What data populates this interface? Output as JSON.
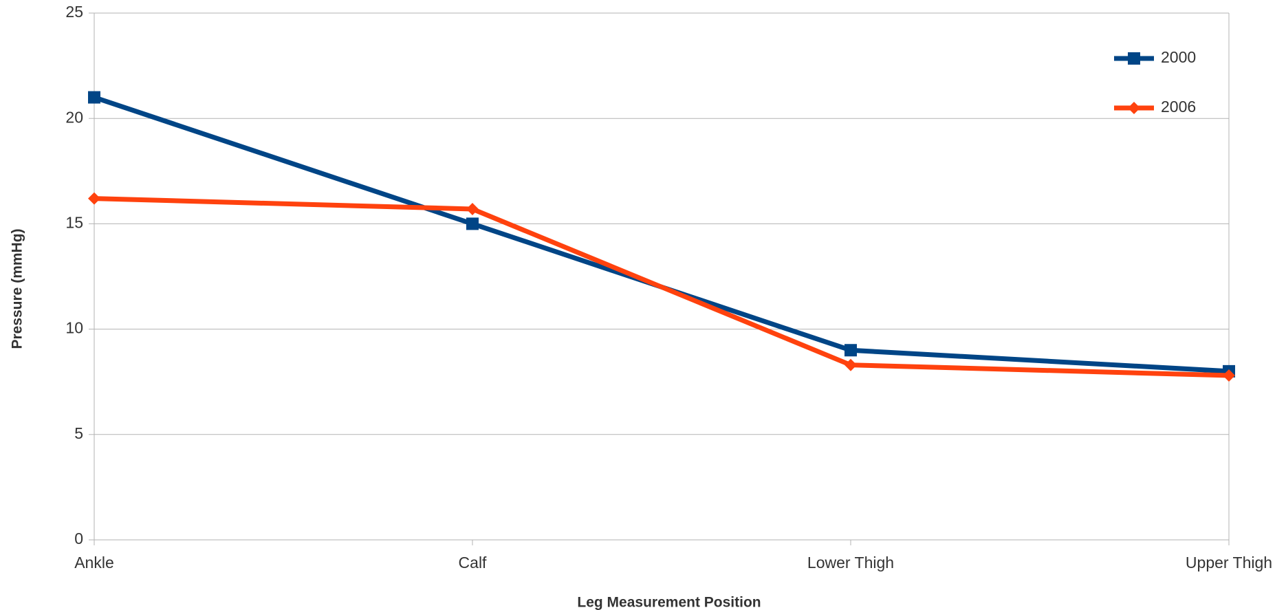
{
  "chart_data": {
    "type": "line",
    "x_label": "Leg Measurement Position",
    "y_label": "Pressure (mmHg)",
    "categories": [
      "Ankle",
      "Calf",
      "Lower Thigh",
      "Upper Thigh"
    ],
    "series": [
      {
        "name": "2000",
        "color": "#004586",
        "marker": "square",
        "values": [
          21,
          15,
          9,
          8
        ]
      },
      {
        "name": "2006",
        "color": "#ff420e",
        "marker": "diamond",
        "values": [
          16.2,
          15.7,
          8.3,
          7.8
        ]
      }
    ],
    "ylim": [
      0,
      25
    ],
    "yticks": [
      0,
      5,
      10,
      15,
      20,
      25
    ],
    "grid": true,
    "legend": "top-right"
  }
}
